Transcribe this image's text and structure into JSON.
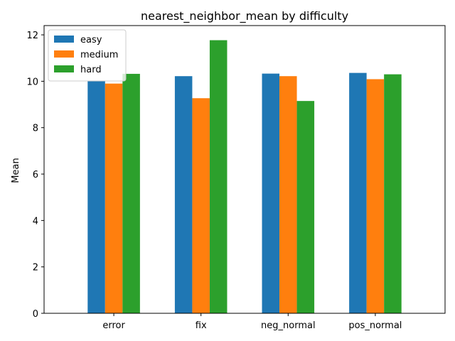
{
  "chart_data": {
    "type": "bar",
    "title": "nearest_neighbor_mean by difficulty",
    "xlabel": "",
    "ylabel": "Mean",
    "categories": [
      "error",
      "fix",
      "neg_normal",
      "pos_normal"
    ],
    "series": [
      {
        "name": "easy",
        "color": "#1f77b4",
        "values": [
          10.03,
          10.22,
          10.33,
          10.36
        ]
      },
      {
        "name": "medium",
        "color": "#ff7f0e",
        "values": [
          9.9,
          9.27,
          10.22,
          10.09
        ]
      },
      {
        "name": "hard",
        "color": "#2ca02c",
        "values": [
          10.32,
          11.77,
          9.15,
          10.3
        ]
      }
    ],
    "ylim": [
      0,
      12.4
    ],
    "yticks": [
      0,
      2,
      4,
      6,
      8,
      10,
      12
    ],
    "grid": false,
    "legend_position": "top-left"
  }
}
